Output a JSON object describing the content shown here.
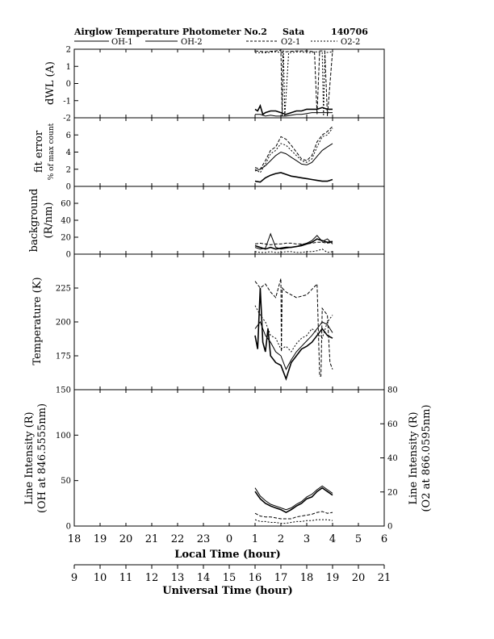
{
  "header": {
    "title": "Airglow Temperature Photometer No.2",
    "station": "Sata",
    "date": "140706"
  },
  "legend": [
    {
      "label": "OH-1",
      "dash": ""
    },
    {
      "label": "OH-2",
      "dash": ""
    },
    {
      "label": "O2-1",
      "dash": "3,2"
    },
    {
      "label": "O2-2",
      "dash": "2,2"
    }
  ],
  "xaxis_local": {
    "label": "Local Time (hour)",
    "ticks": [
      {
        "v": 18,
        "label": "18"
      },
      {
        "v": 19,
        "label": "19"
      },
      {
        "v": 20,
        "label": "20"
      },
      {
        "v": 21,
        "label": "21"
      },
      {
        "v": 22,
        "label": "22"
      },
      {
        "v": 23,
        "label": "23"
      },
      {
        "v": 24,
        "label": "0"
      },
      {
        "v": 25,
        "label": "1"
      },
      {
        "v": 26,
        "label": "2"
      },
      {
        "v": 27,
        "label": "3"
      },
      {
        "v": 28,
        "label": "4"
      },
      {
        "v": 29,
        "label": "5"
      },
      {
        "v": 30,
        "label": "6"
      }
    ]
  },
  "xaxis_ut": {
    "label": "Universal Time (hour)",
    "ticks": [
      "9",
      "10",
      "11",
      "12",
      "13",
      "14",
      "15",
      "16",
      "17",
      "18",
      "19",
      "20",
      "21"
    ]
  },
  "chart_data": [
    {
      "type": "line",
      "id": "dwl",
      "ylabel": "dWL (A)",
      "ylim": [
        -2,
        2
      ],
      "yticks": [
        -2,
        -1,
        0,
        1,
        2
      ],
      "series": [
        {
          "name": "OH-1",
          "x": [
            25.0,
            25.1,
            25.2,
            25.3,
            25.4,
            25.6,
            25.8,
            26.0,
            26.2,
            26.4,
            26.6,
            26.8,
            27.0,
            27.2,
            27.4,
            27.6,
            27.8,
            28.0
          ],
          "y": [
            -1.5,
            -1.6,
            -1.3,
            -1.8,
            -1.7,
            -1.6,
            -1.6,
            -1.7,
            -1.8,
            -1.7,
            -1.6,
            -1.6,
            -1.5,
            -1.5,
            -1.5,
            -1.4,
            -1.5,
            -1.5
          ]
        },
        {
          "name": "OH-2",
          "x": [
            25.0,
            25.2,
            25.4,
            25.6,
            25.8,
            26.0,
            26.2,
            26.4,
            26.6,
            26.8,
            27.0,
            27.2,
            27.4,
            27.6,
            27.8,
            28.0
          ],
          "y": [
            -1.8,
            -1.8,
            -1.9,
            -1.85,
            -1.9,
            -1.9,
            -1.9,
            -1.85,
            -1.8,
            -1.8,
            -1.75,
            -1.7,
            -1.7,
            -1.7,
            -1.7,
            -1.7
          ]
        },
        {
          "name": "O2-1",
          "x": [
            25.0,
            25.4,
            25.8,
            26.0,
            26.05,
            26.08,
            26.2,
            26.6,
            27.0,
            27.3,
            27.4,
            27.5,
            27.7,
            27.8,
            28.0
          ],
          "y": [
            1.9,
            1.85,
            1.9,
            1.95,
            -1.9,
            1.9,
            1.85,
            1.9,
            1.9,
            1.85,
            -1.8,
            1.9,
            1.9,
            -1.9,
            1.9
          ]
        },
        {
          "name": "O2-2",
          "x": [
            25.0,
            25.4,
            25.8,
            26.1,
            26.15,
            26.3,
            26.7,
            27.1,
            27.4,
            27.6,
            27.65,
            27.7,
            28.0
          ],
          "y": [
            1.8,
            1.8,
            1.85,
            1.8,
            -1.95,
            1.8,
            1.85,
            1.8,
            1.85,
            1.8,
            -1.9,
            1.8,
            1.85
          ]
        }
      ]
    },
    {
      "type": "line",
      "id": "fiterror",
      "ylabel": "fit error",
      "ylabel2": "% of max count",
      "ylim": [
        0,
        8
      ],
      "yticks": [
        0,
        2,
        4,
        6
      ],
      "series": [
        {
          "name": "OH-1",
          "x": [
            25.0,
            25.2,
            25.4,
            25.6,
            25.8,
            26.0,
            26.2,
            26.4,
            26.6,
            26.8,
            27.0,
            27.2,
            27.4,
            27.6,
            27.8,
            28.0
          ],
          "y": [
            0.6,
            0.5,
            1.0,
            1.3,
            1.5,
            1.6,
            1.4,
            1.2,
            1.1,
            1.0,
            0.9,
            0.8,
            0.7,
            0.6,
            0.6,
            0.8
          ]
        },
        {
          "name": "OH-2",
          "x": [
            25.0,
            25.2,
            25.4,
            25.6,
            25.8,
            26.0,
            26.2,
            26.4,
            26.6,
            26.8,
            27.0,
            27.2,
            27.4,
            27.6,
            27.8,
            28.0
          ],
          "y": [
            1.8,
            2.0,
            2.4,
            3.0,
            3.6,
            4.0,
            3.8,
            3.4,
            3.0,
            2.6,
            2.5,
            2.8,
            3.5,
            4.2,
            4.6,
            5.0
          ]
        },
        {
          "name": "O2-1",
          "x": [
            25.0,
            25.2,
            25.4,
            25.6,
            25.8,
            26.0,
            26.2,
            26.4,
            26.6,
            26.8,
            27.0,
            27.2,
            27.4,
            27.6,
            27.8,
            28.0
          ],
          "y": [
            2.2,
            2.0,
            3.0,
            4.2,
            4.6,
            5.8,
            5.5,
            4.8,
            4.0,
            3.2,
            3.0,
            3.6,
            5.2,
            6.0,
            6.4,
            7.0
          ]
        },
        {
          "name": "O2-2",
          "x": [
            25.0,
            25.2,
            25.4,
            25.6,
            25.8,
            26.0,
            26.2,
            26.4,
            26.6,
            26.8,
            27.0,
            27.2,
            27.4,
            27.6,
            27.8,
            28.0
          ],
          "y": [
            2.0,
            1.6,
            2.6,
            3.8,
            4.2,
            5.0,
            4.8,
            4.2,
            3.6,
            3.0,
            2.8,
            3.2,
            4.6,
            5.8,
            6.0,
            6.8
          ]
        }
      ]
    },
    {
      "type": "line",
      "id": "background",
      "ylabel": "background",
      "ylabel2": "(R/nm)",
      "ylim": [
        0,
        80
      ],
      "yticks": [
        0,
        20,
        40,
        60
      ],
      "series": [
        {
          "name": "OH-1",
          "x": [
            25.0,
            25.2,
            25.4,
            25.6,
            25.8,
            26.0,
            26.2,
            26.4,
            26.6,
            26.8,
            27.0,
            27.2,
            27.4,
            27.6,
            27.8,
            28.0
          ],
          "y": [
            10,
            8,
            6,
            8,
            6,
            7,
            8,
            8,
            9,
            10,
            12,
            14,
            18,
            16,
            14,
            15
          ]
        },
        {
          "name": "OH-2",
          "x": [
            25.0,
            25.2,
            25.4,
            25.6,
            25.8,
            26.0,
            26.2,
            26.4,
            26.6,
            26.8,
            27.0,
            27.2,
            27.4,
            27.6,
            27.8,
            28.0
          ],
          "y": [
            8,
            6,
            7,
            24,
            8,
            6,
            7,
            8,
            9,
            11,
            13,
            16,
            22,
            15,
            18,
            12
          ]
        },
        {
          "name": "O2-1",
          "x": [
            25.0,
            25.2,
            25.4,
            25.6,
            25.8,
            26.0,
            26.2,
            26.4,
            26.6,
            26.8,
            27.0,
            27.2,
            27.4,
            27.6,
            27.8,
            28.0
          ],
          "y": [
            12,
            13,
            12,
            11,
            12,
            12,
            13,
            13,
            12,
            12,
            12,
            13,
            14,
            14,
            13,
            14
          ]
        },
        {
          "name": "O2-2",
          "x": [
            25.0,
            25.2,
            25.4,
            25.6,
            25.8,
            26.0,
            26.2,
            26.4,
            26.6,
            26.8,
            27.0,
            27.2,
            27.4,
            27.6,
            27.8,
            28.0
          ],
          "y": [
            3,
            2,
            2,
            3,
            2,
            2,
            3,
            3,
            2,
            2,
            3,
            3,
            4,
            6,
            2,
            3
          ]
        }
      ]
    },
    {
      "type": "line",
      "id": "temperature",
      "ylabel": "Temperature (K)",
      "ylim": [
        150,
        250
      ],
      "yticks": [
        175,
        200,
        225
      ],
      "series": [
        {
          "name": "OH-1",
          "x": [
            25.0,
            25.1,
            25.2,
            25.3,
            25.4,
            25.5,
            25.6,
            25.8,
            26.0,
            26.2,
            26.4,
            26.6,
            26.8,
            27.0,
            27.2,
            27.4,
            27.6,
            27.8,
            28.0
          ],
          "y": [
            190,
            180,
            225,
            185,
            178,
            195,
            175,
            170,
            168,
            158,
            170,
            175,
            180,
            182,
            185,
            190,
            195,
            190,
            188
          ]
        },
        {
          "name": "OH-2",
          "x": [
            25.0,
            25.2,
            25.4,
            25.6,
            25.8,
            26.0,
            26.2,
            26.4,
            26.6,
            26.8,
            27.0,
            27.2,
            27.4,
            27.6,
            27.8,
            28.0
          ],
          "y": [
            195,
            200,
            190,
            185,
            178,
            175,
            165,
            172,
            178,
            182,
            186,
            190,
            195,
            200,
            198,
            192
          ]
        },
        {
          "name": "O2-1",
          "x": [
            25.0,
            25.2,
            25.4,
            25.6,
            25.8,
            26.0,
            26.02,
            26.05,
            26.2,
            26.6,
            27.0,
            27.4,
            27.5,
            27.55,
            27.6,
            27.8,
            27.9,
            28.0
          ],
          "y": [
            230,
            225,
            228,
            222,
            218,
            232,
            178,
            225,
            222,
            218,
            220,
            228,
            160,
            160,
            210,
            205,
            170,
            165
          ]
        },
        {
          "name": "O2-2",
          "x": [
            25.0,
            25.2,
            25.4,
            25.6,
            25.8,
            26.0,
            26.2,
            26.4,
            26.6,
            26.8,
            27.0,
            27.2,
            27.4,
            27.6,
            27.8,
            28.0
          ],
          "y": [
            212,
            205,
            200,
            190,
            188,
            180,
            182,
            178,
            184,
            188,
            190,
            195,
            192,
            188,
            200,
            205
          ]
        }
      ]
    },
    {
      "type": "line",
      "id": "intensity",
      "ylabel": "Line Intensity (R)",
      "ylabel2": "(OH at 846.5555nm)",
      "y2label": "Line Intensity (R)",
      "y2label2": "(O2 at 866.0595nm)",
      "ylim": [
        0,
        150
      ],
      "yticks": [
        0,
        50,
        100,
        150
      ],
      "y2lim": [
        0,
        80
      ],
      "y2ticks": [
        0,
        20,
        40,
        60,
        80
      ],
      "series": [
        {
          "name": "OH-1",
          "x": [
            25.0,
            25.2,
            25.4,
            25.6,
            25.8,
            26.0,
            26.2,
            26.4,
            26.6,
            26.8,
            27.0,
            27.2,
            27.4,
            27.6,
            27.8,
            28.0
          ],
          "y": [
            38,
            30,
            25,
            22,
            20,
            18,
            15,
            18,
            22,
            25,
            30,
            32,
            38,
            42,
            38,
            34
          ]
        },
        {
          "name": "OH-2",
          "x": [
            25.0,
            25.2,
            25.4,
            25.6,
            25.8,
            26.0,
            26.2,
            26.4,
            26.6,
            26.8,
            27.0,
            27.2,
            27.4,
            27.6,
            27.8,
            28.0
          ],
          "y": [
            42,
            33,
            28,
            24,
            22,
            20,
            18,
            20,
            24,
            27,
            32,
            35,
            40,
            44,
            40,
            36
          ]
        },
        {
          "name": "O2-1",
          "x": [
            25.0,
            25.2,
            25.4,
            25.6,
            25.8,
            26.0,
            26.2,
            26.4,
            26.6,
            26.8,
            27.0,
            27.2,
            27.4,
            27.6,
            27.8,
            28.0
          ],
          "y": [
            14,
            11,
            10,
            10,
            9,
            8,
            8,
            8,
            10,
            11,
            12,
            13,
            15,
            16,
            14,
            15
          ]
        },
        {
          "name": "O2-2",
          "x": [
            25.0,
            25.2,
            25.4,
            25.6,
            25.8,
            26.0,
            26.2,
            26.4,
            26.6,
            26.8,
            27.0,
            27.2,
            27.4,
            27.6,
            27.8,
            28.0
          ],
          "y": [
            7,
            5,
            5,
            4,
            4,
            3,
            3,
            4,
            5,
            5,
            6,
            6,
            7,
            7,
            7,
            6
          ]
        }
      ]
    }
  ]
}
